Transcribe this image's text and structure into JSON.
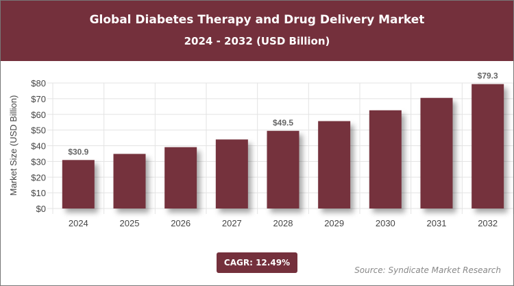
{
  "header": {
    "title": "Global Diabetes Therapy and Drug Delivery Market",
    "subtitle": "2024 - 2032 (USD Billion)"
  },
  "chart_data": {
    "type": "bar",
    "title": "Global Diabetes Therapy and Drug Delivery Market",
    "subtitle": "2024 - 2032 (USD Billion)",
    "categories": [
      "2024",
      "2025",
      "2026",
      "2027",
      "2028",
      "2029",
      "2030",
      "2031",
      "2032"
    ],
    "values": [
      30.9,
      34.8,
      39.1,
      44.0,
      49.5,
      55.7,
      62.6,
      70.5,
      79.3
    ],
    "data_labels": {
      "0": "$30.9",
      "4": "$49.5",
      "8": "$79.3"
    },
    "xlabel": "",
    "ylabel": "Market Size (USD Billion)",
    "ylim": [
      0,
      80
    ],
    "yticks": [
      "$0",
      "$10",
      "$20",
      "$30",
      "$40",
      "$50",
      "$60",
      "$70",
      "$80"
    ],
    "grid": true,
    "bar_color": "#74303c"
  },
  "footer": {
    "cagr": "CAGR: 12.49%",
    "source": "Source: Syndicate Market Research"
  }
}
